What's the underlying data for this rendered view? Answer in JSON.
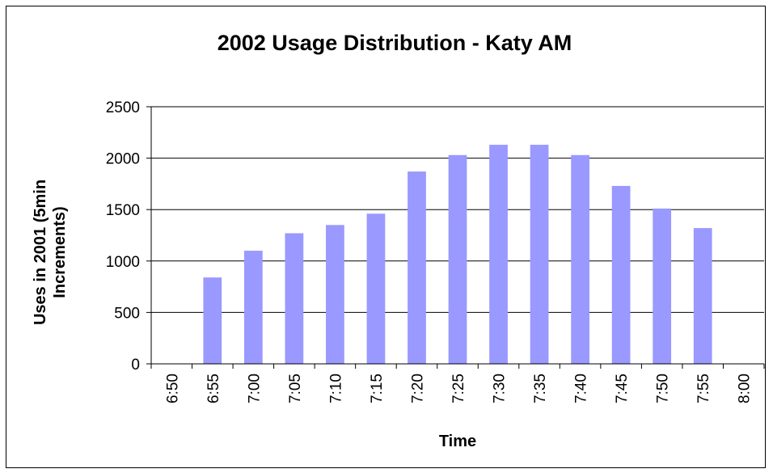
{
  "chart_data": {
    "type": "bar",
    "title": "2002 Usage Distribution - Katy AM",
    "xlabel": "Time",
    "ylabel_lines": [
      "Uses in 2001 (5min",
      "Increments)"
    ],
    "categories": [
      "6:50",
      "6:55",
      "7:00",
      "7:05",
      "7:10",
      "7:15",
      "7:20",
      "7:25",
      "7:30",
      "7:35",
      "7:40",
      "7:45",
      "7:50",
      "7:55",
      "8:00"
    ],
    "values": [
      0,
      840,
      1100,
      1270,
      1350,
      1460,
      1870,
      2030,
      2130,
      2130,
      2030,
      1730,
      1510,
      1320,
      0
    ],
    "ylim": [
      0,
      2500
    ],
    "yticks": [
      0,
      500,
      1000,
      1500,
      2000,
      2500
    ],
    "grid": "horizontal",
    "legend": "none",
    "colors": {
      "bar": "#9999ff",
      "gridline": "#000000",
      "axis": "#000000"
    }
  }
}
